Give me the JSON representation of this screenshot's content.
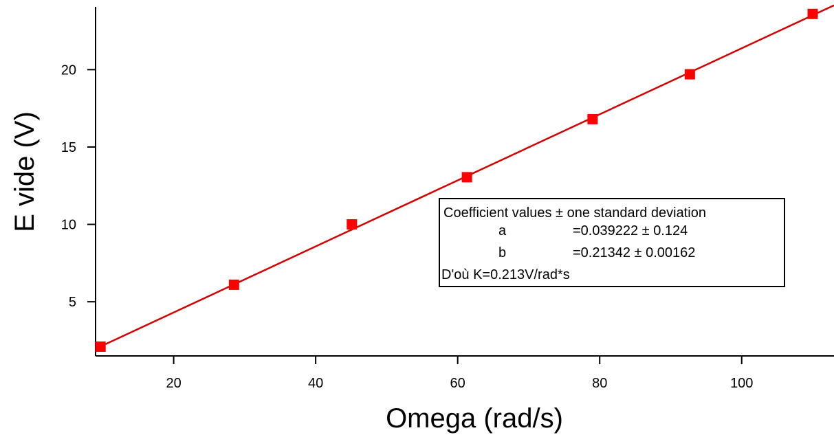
{
  "chart_data": {
    "type": "scatter",
    "xlabel": "Omega (rad/s)",
    "ylabel": "E vide (V)",
    "xlim": [
      9,
      113
    ],
    "ylim": [
      1.5,
      24.5
    ],
    "xticks": [
      20,
      40,
      60,
      80,
      100
    ],
    "yticks": [
      5,
      10,
      15,
      20
    ],
    "grid": false,
    "series": [
      {
        "marker": "square",
        "color": "#ff0000",
        "x": [
          9.7,
          28.5,
          45.1,
          61.3,
          79.0,
          92.7,
          110.0
        ],
        "y": [
          2.1,
          6.1,
          10.0,
          13.05,
          16.8,
          19.7,
          23.6
        ]
      }
    ],
    "fit": {
      "type": "line",
      "color": "#d40000",
      "a": 0.039222,
      "b": 0.21342,
      "x_range": [
        9.7,
        113
      ]
    },
    "annotation": {
      "header": "Coefficient values ± one standard deviation",
      "rows": [
        {
          "name": "a",
          "value": "=0.039222 ± 0.124"
        },
        {
          "name": "b",
          "value": "=0.21342 ± 0.00162"
        }
      ],
      "footer": "D'où K=0.213V/rad*s"
    }
  }
}
